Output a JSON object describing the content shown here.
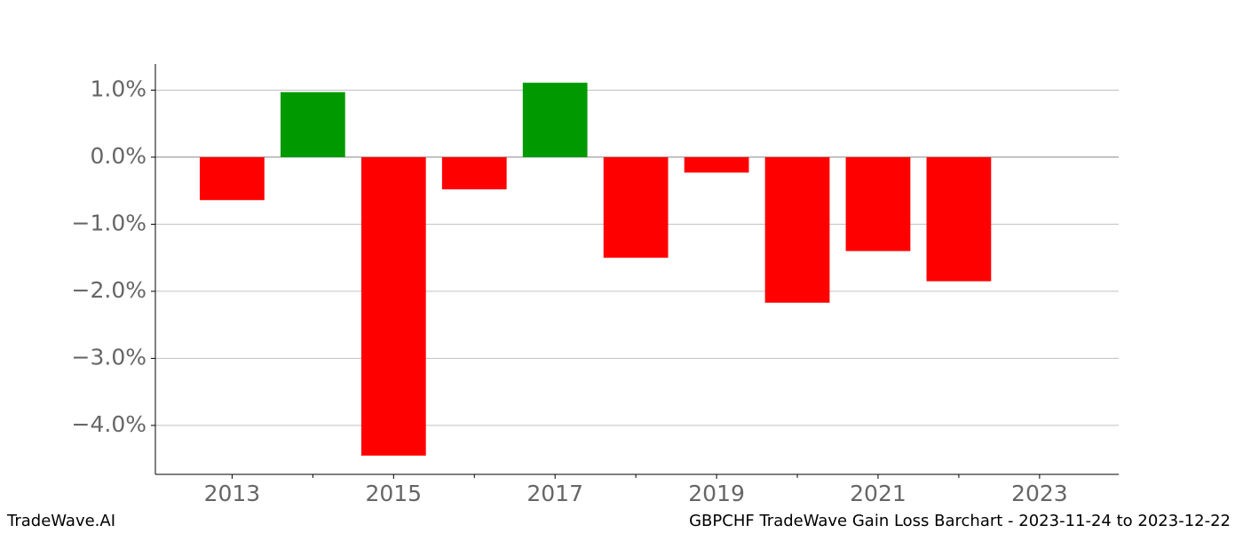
{
  "chart_data": {
    "type": "bar",
    "x": [
      2013,
      2014,
      2015,
      2016,
      2017,
      2018,
      2019,
      2020,
      2021,
      2022
    ],
    "values": [
      -0.64,
      0.97,
      -4.45,
      -0.48,
      1.11,
      -1.5,
      -0.23,
      -2.17,
      -1.4,
      -1.85
    ],
    "positive_color": "#009900",
    "negative_color": "#ff0000",
    "xlim": [
      2012.05,
      2023.98
    ],
    "xticks": [
      2013,
      2015,
      2017,
      2019,
      2021,
      2023
    ],
    "xminor_ticks": [
      2014,
      2016,
      2018,
      2020,
      2022
    ],
    "ylim": [
      -4.73,
      1.39
    ],
    "yticks": [
      {
        "value": 1,
        "label": "1.0%"
      },
      {
        "value": 0,
        "label": "0.0%"
      },
      {
        "value": -1,
        "label": "−1.0%"
      },
      {
        "value": -2,
        "label": "−2.0%"
      },
      {
        "value": -3,
        "label": "−3.0%"
      },
      {
        "value": -4,
        "label": "−4.0%"
      }
    ],
    "grid": true,
    "watermark": "TradeWave.AI",
    "title": "GBPCHF TradeWave Gain Loss Barchart - 2023-11-24 to 2023-12-22"
  }
}
